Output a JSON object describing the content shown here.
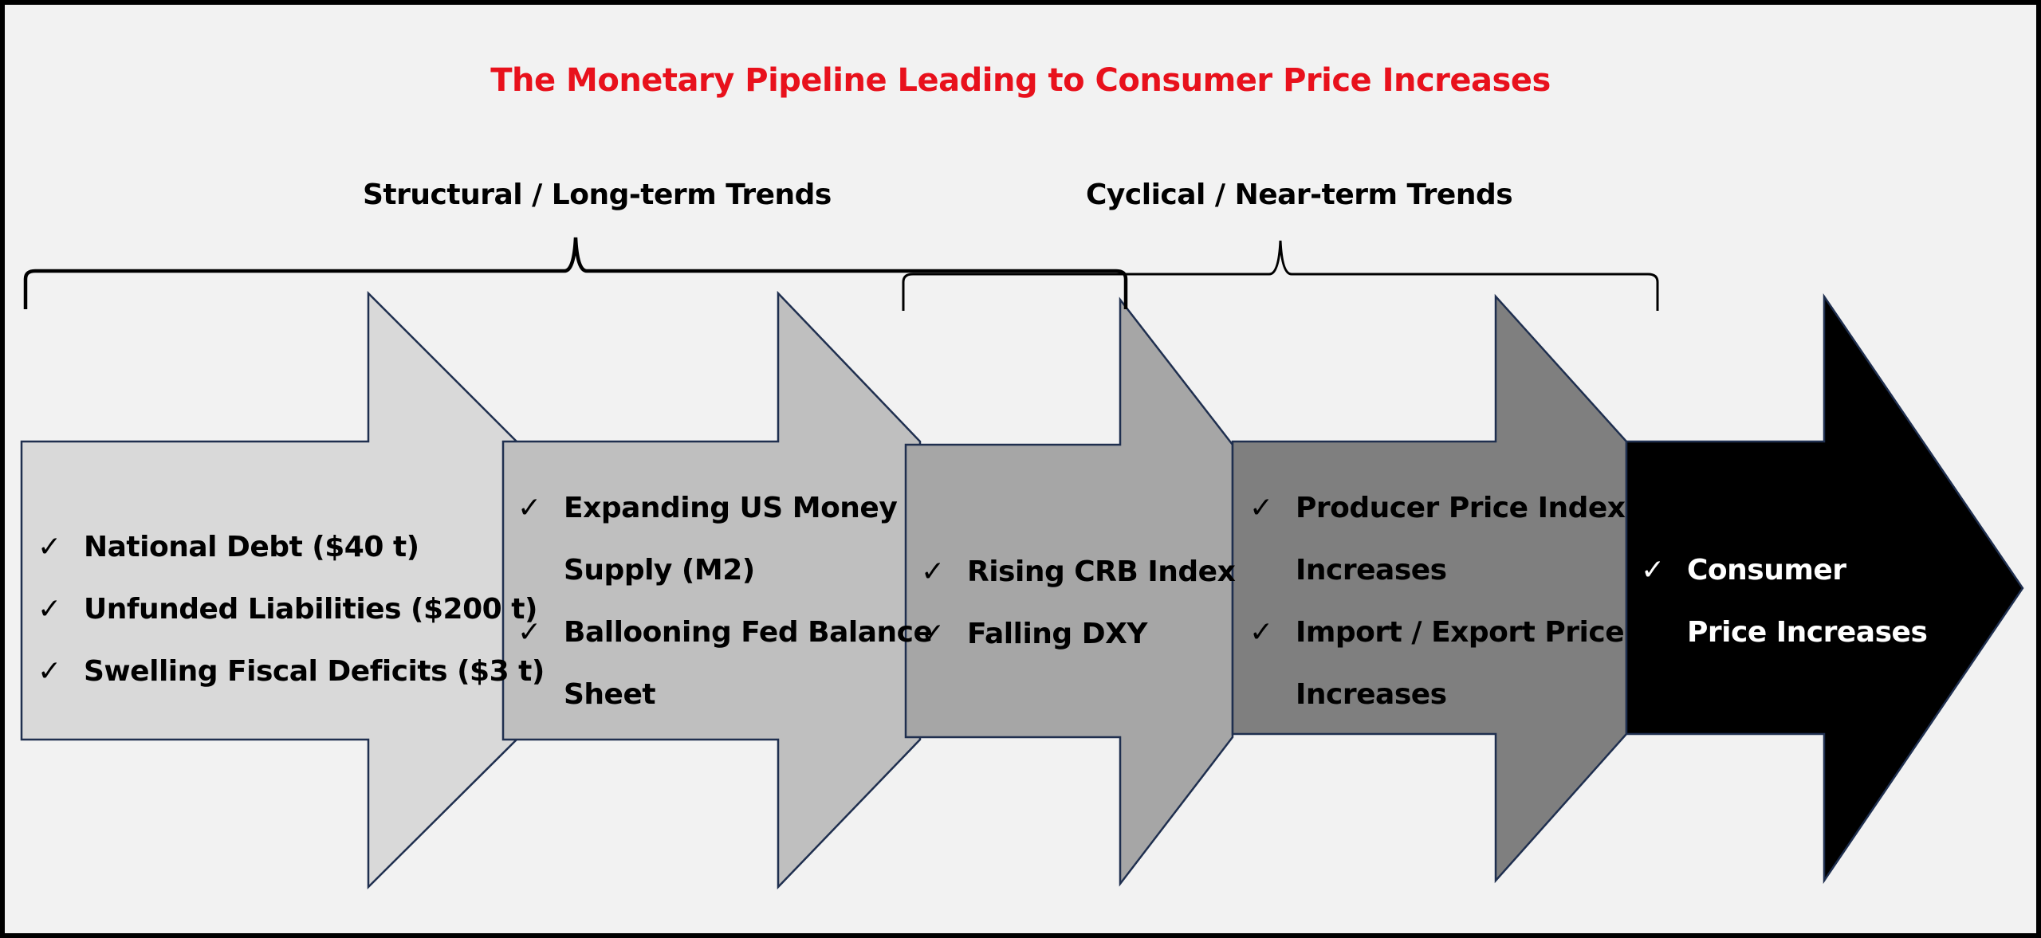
{
  "title": "The Monetary Pipeline Leading to Consumer Price Increases",
  "colors": {
    "title": "#e8111c",
    "background": "#f2f2f2",
    "arrow_outline": "#1f2f4f",
    "stage_fills": [
      "#d9d9d9",
      "#bfbfbf",
      "#a6a6a6",
      "#7f7f7f",
      "#000000"
    ]
  },
  "brackets": {
    "structural": "Structural / Long-term Trends",
    "cyclical": "Cyclical / Near-term Trends"
  },
  "stages": [
    {
      "bullets": [
        {
          "icon": "checkmark-icon",
          "check": "✓",
          "lines": [
            "National Debt ($40 t)"
          ]
        },
        {
          "icon": "checkmark-icon",
          "check": "✓",
          "lines": [
            "Unfunded Liabilities ($200 t)"
          ]
        },
        {
          "icon": "checkmark-icon",
          "check": "✓",
          "lines": [
            "Swelling Fiscal Deficits ($3 t)"
          ]
        }
      ]
    },
    {
      "bullets": [
        {
          "icon": "checkmark-icon",
          "check": "✓",
          "lines": [
            "Expanding US Money",
            "Supply (M2)"
          ]
        },
        {
          "icon": "checkmark-icon",
          "check": "✓",
          "lines": [
            "Ballooning Fed Balance",
            "Sheet"
          ]
        }
      ]
    },
    {
      "bullets": [
        {
          "icon": "checkmark-icon",
          "check": "✓",
          "lines": [
            "Rising CRB Index"
          ]
        },
        {
          "icon": "checkmark-icon",
          "check": "✓",
          "lines": [
            "Falling DXY"
          ]
        }
      ]
    },
    {
      "bullets": [
        {
          "icon": "checkmark-icon",
          "check": "✓",
          "lines": [
            "Producer Price Index",
            "Increases"
          ]
        },
        {
          "icon": "checkmark-icon",
          "check": "✓",
          "lines": [
            "Import / Export Price",
            "Increases"
          ]
        }
      ]
    },
    {
      "bullets": [
        {
          "icon": "checkmark-icon",
          "check": "✓",
          "lines": [
            "Consumer",
            "Price Increases"
          ]
        }
      ]
    }
  ]
}
